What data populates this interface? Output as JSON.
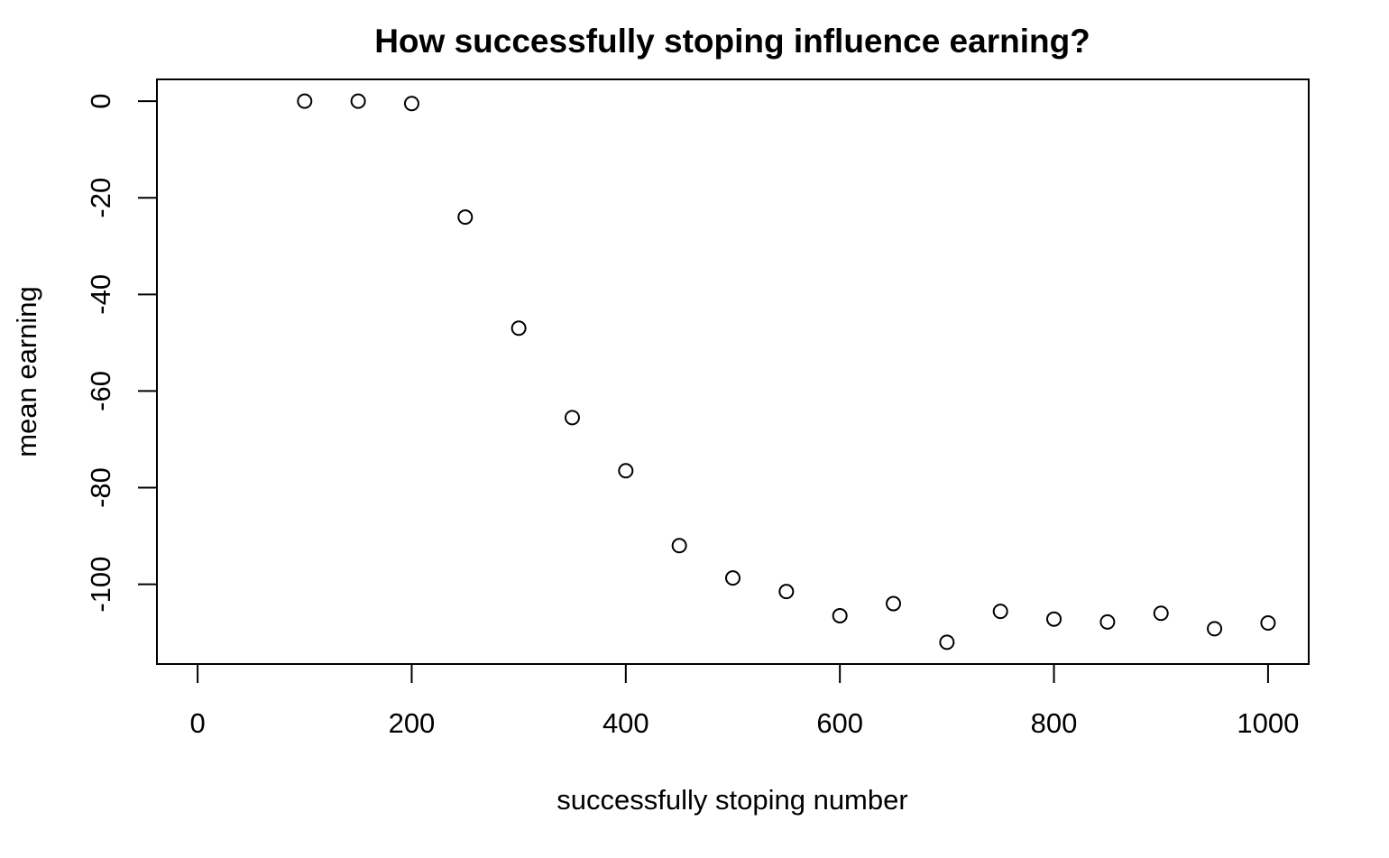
{
  "chart_data": {
    "type": "scatter",
    "title": "How successfully stoping influence earning?",
    "xlabel": "successfully stoping number",
    "ylabel": "mean earning",
    "xlim": [
      -38,
      1038
    ],
    "ylim": [
      -116.5,
      4.5
    ],
    "xticks": [
      0,
      200,
      400,
      600,
      800,
      1000
    ],
    "yticks": [
      0,
      -20,
      -40,
      -60,
      -80,
      -100
    ],
    "grid": false,
    "legend": "none",
    "x": [
      100,
      150,
      200,
      250,
      300,
      350,
      400,
      450,
      500,
      550,
      600,
      650,
      700,
      750,
      800,
      850,
      900,
      950,
      1000
    ],
    "y": [
      0.0,
      0.0,
      -0.5,
      -24.0,
      -47.0,
      -65.5,
      -76.5,
      -92.0,
      -98.7,
      -101.5,
      -106.5,
      -104.0,
      -112.0,
      -105.6,
      -107.2,
      -107.8,
      -106.0,
      -109.2,
      -108.0
    ],
    "colors": {
      "marker": "#000000",
      "background": "#ffffff"
    }
  }
}
